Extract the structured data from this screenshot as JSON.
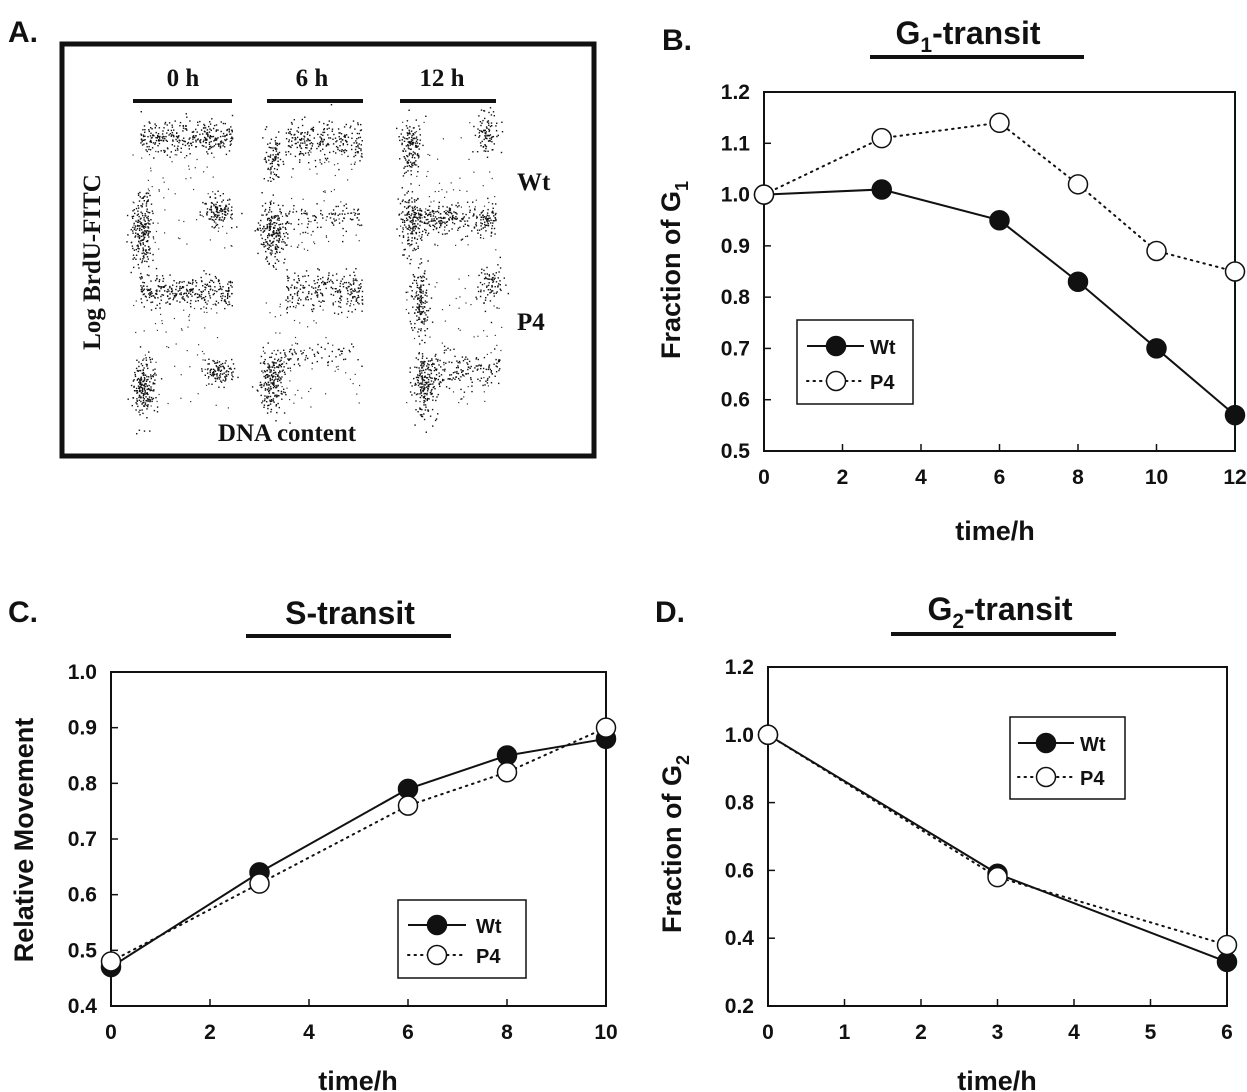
{
  "panel_labels": {
    "a": "A.",
    "b": "B.",
    "c": "C.",
    "d": "D."
  },
  "flow_panel": {
    "time_headers": [
      "0 h",
      "6 h",
      "12 h"
    ],
    "row_labels": [
      "Wt",
      "P4"
    ],
    "y_label": "Log BrdU-FITC",
    "x_label": "DNA content"
  },
  "chart_data": [
    {
      "panel": "B",
      "type": "line",
      "title": {
        "main": "G",
        "sub": "1",
        "rest": "-transit"
      },
      "xlabel": "time/h",
      "ylabel": {
        "main": "Fraction of G",
        "sub": "1"
      },
      "xlim": [
        0,
        12
      ],
      "ylim": [
        0.5,
        1.2
      ],
      "x_ticks": [
        0,
        2,
        4,
        6,
        8,
        10,
        12
      ],
      "x_tick_labels": [
        "0",
        "2",
        "4",
        "6",
        "8",
        "10",
        "12"
      ],
      "y_ticks": [
        0.5,
        0.6,
        0.7,
        0.8,
        0.9,
        1.0,
        1.1,
        1.2
      ],
      "y_tick_labels": [
        "0.5",
        "0.6",
        "0.7",
        "0.8",
        "0.9",
        "1.0",
        "1.1",
        "1.2"
      ],
      "legend_position": "middle-left",
      "series": [
        {
          "name": "Wt",
          "marker": "filled",
          "line": "solid",
          "x": [
            0,
            3,
            6,
            8,
            10,
            12
          ],
          "y": [
            1.0,
            1.01,
            0.95,
            0.83,
            0.7,
            0.57
          ]
        },
        {
          "name": "P4",
          "marker": "open",
          "line": "dotted",
          "x": [
            0,
            3,
            6,
            8,
            10,
            12
          ],
          "y": [
            1.0,
            1.11,
            1.14,
            1.02,
            0.89,
            0.85
          ]
        }
      ]
    },
    {
      "panel": "C",
      "type": "line",
      "title": {
        "main": "S-transit",
        "sub": "",
        "rest": ""
      },
      "xlabel": "time/h",
      "ylabel": {
        "main": "Relative Movement",
        "sub": ""
      },
      "xlim": [
        0,
        10
      ],
      "ylim": [
        0.4,
        1.0
      ],
      "x_ticks": [
        0,
        2,
        4,
        6,
        8,
        10
      ],
      "x_tick_labels": [
        "0",
        "2",
        "4",
        "6",
        "8",
        "10"
      ],
      "y_ticks": [
        0.4,
        0.5,
        0.6,
        0.7,
        0.8,
        0.9,
        1.0
      ],
      "y_tick_labels": [
        "0.4",
        "0.5",
        "0.6",
        "0.7",
        "0.8",
        "0.9",
        "1.0"
      ],
      "legend_position": "bottom-right",
      "series": [
        {
          "name": "Wt",
          "marker": "filled",
          "line": "solid",
          "x": [
            0,
            3,
            6,
            8,
            10
          ],
          "y": [
            0.47,
            0.64,
            0.79,
            0.85,
            0.88
          ]
        },
        {
          "name": "P4",
          "marker": "open",
          "line": "dotted",
          "x": [
            0,
            3,
            6,
            8,
            10
          ],
          "y": [
            0.48,
            0.62,
            0.76,
            0.82,
            0.9
          ]
        }
      ]
    },
    {
      "panel": "D",
      "type": "line",
      "title": {
        "main": "G",
        "sub": "2",
        "rest": "-transit"
      },
      "xlabel": "time/h",
      "ylabel": {
        "main": "Fraction of G",
        "sub": "2"
      },
      "xlim": [
        0,
        6
      ],
      "ylim": [
        0.2,
        1.2
      ],
      "x_ticks": [
        0,
        1,
        2,
        3,
        4,
        5,
        6
      ],
      "x_tick_labels": [
        "0",
        "1",
        "2",
        "3",
        "4",
        "5",
        "6"
      ],
      "y_ticks": [
        0.2,
        0.4,
        0.6,
        0.8,
        1.0,
        1.2
      ],
      "y_tick_labels": [
        "0.2",
        "0.4",
        "0.6",
        "0.8",
        "1.0",
        "1.2"
      ],
      "legend_position": "top-right",
      "series": [
        {
          "name": "Wt",
          "marker": "filled",
          "line": "solid",
          "x": [
            0,
            3,
            6
          ],
          "y": [
            1.0,
            0.59,
            0.33
          ]
        },
        {
          "name": "P4",
          "marker": "open",
          "line": "dotted",
          "x": [
            0,
            3,
            6
          ],
          "y": [
            1.0,
            0.58,
            0.38
          ]
        }
      ]
    }
  ]
}
